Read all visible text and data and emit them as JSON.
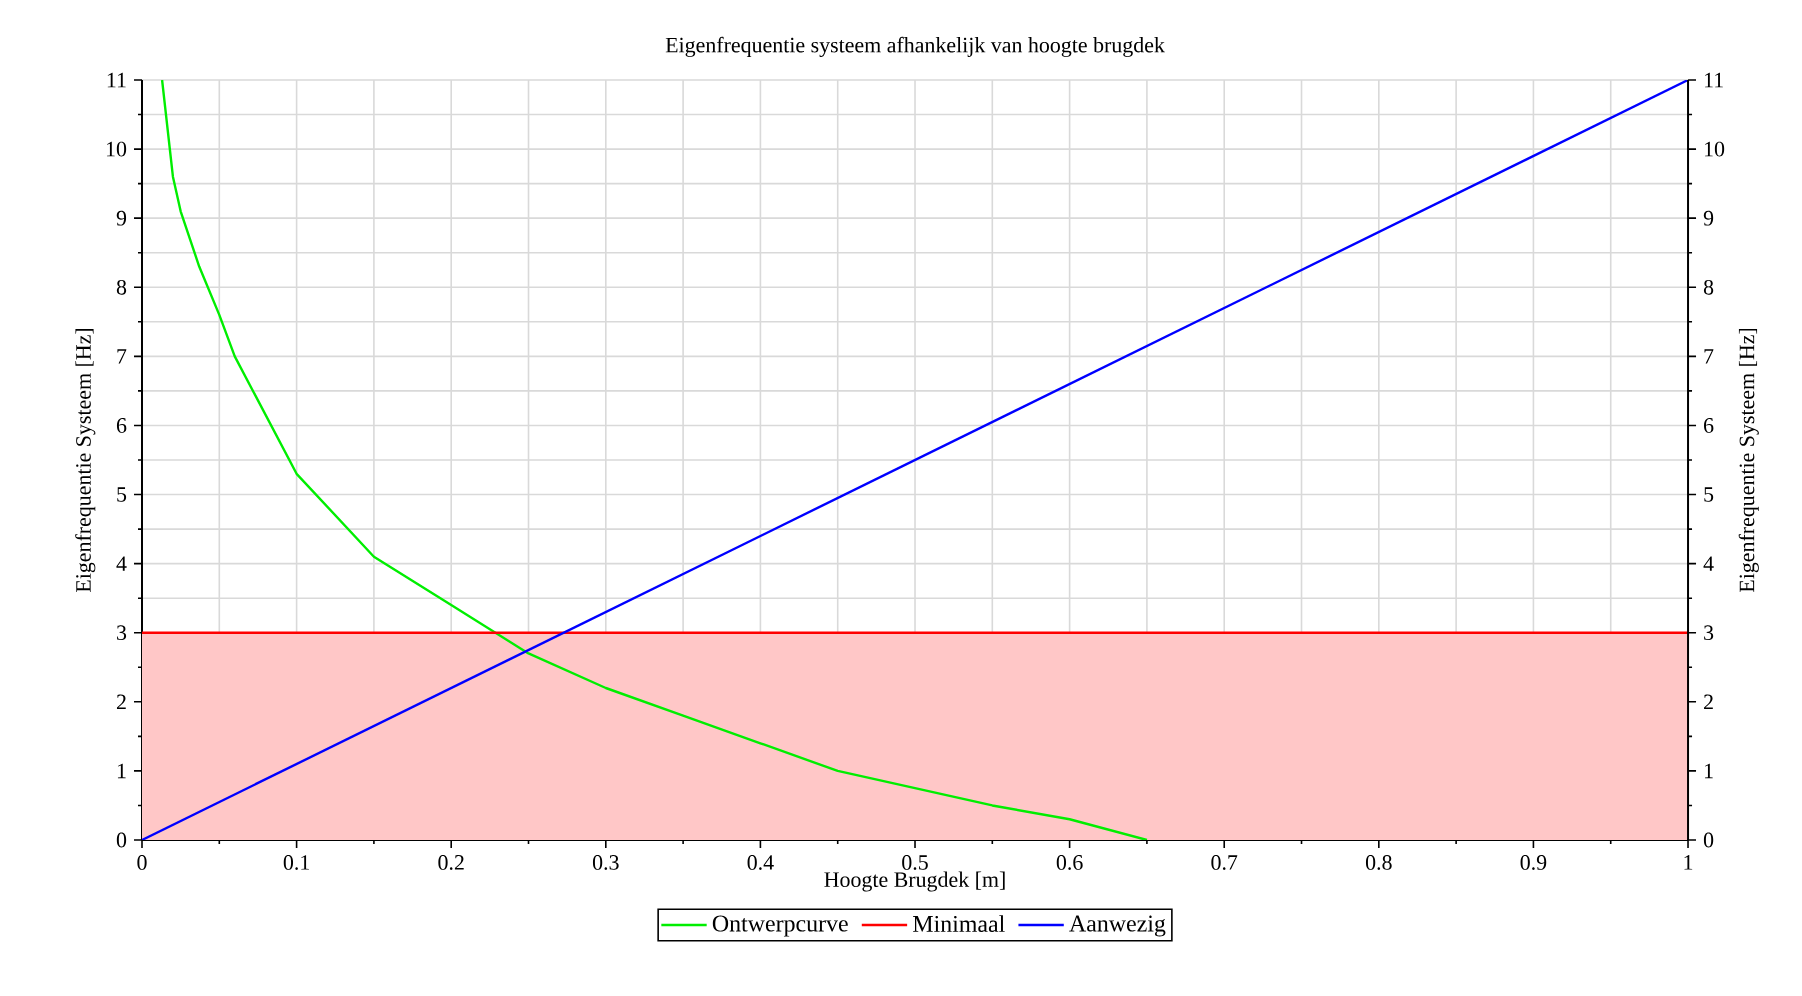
{
  "chart_data": {
    "type": "line",
    "title": "Eigenfrequentie systeem afhankelijk van hoogte brugdek",
    "xlabel": "Hoogte Brugdek [m]",
    "ylabel": "Eigenfrequentie Systeem [Hz]",
    "y2label": "Eigenfrequentie Systeem [Hz]",
    "xlim": [
      0,
      1
    ],
    "xticks": [
      0,
      0.1,
      0.2,
      0.3,
      0.4,
      0.5,
      0.6,
      0.7,
      0.8,
      0.9,
      1
    ],
    "ylim": [
      0,
      11
    ],
    "yticks": [
      0,
      1,
      2,
      3,
      4,
      5,
      6,
      7,
      8,
      9,
      10,
      11
    ],
    "y2lim": [
      0,
      11
    ],
    "y2ticks": [
      0,
      1,
      2,
      3,
      4,
      5,
      6,
      7,
      8,
      9,
      10,
      11
    ],
    "grid": true,
    "legend": "bottom",
    "marker": "none",
    "line_style": "solid",
    "series": [
      {
        "name": "Ontwerpcurve",
        "color": "#00ee00",
        "x": [
          0.013,
          0.02,
          0.025,
          0.037,
          0.05,
          0.06,
          0.1,
          0.15,
          0.2,
          0.25,
          0.3,
          0.35,
          0.4,
          0.45,
          0.5,
          0.55,
          0.6,
          0.65
        ],
        "values": [
          11,
          9.6,
          9.1,
          8.3,
          7.6,
          7.0,
          5.3,
          4.1,
          3.4,
          2.7,
          2.2,
          1.8,
          1.4,
          1.0,
          0.75,
          0.5,
          0.3,
          0
        ]
      },
      {
        "name": "Minimaal",
        "type": "area",
        "color": "#ff0000",
        "x": [
          0,
          1
        ],
        "values": [
          3,
          3
        ]
      },
      {
        "name": "Aanwezig",
        "color": "#0000ff",
        "x": [
          0,
          1
        ],
        "values": [
          0,
          11
        ]
      }
    ]
  }
}
